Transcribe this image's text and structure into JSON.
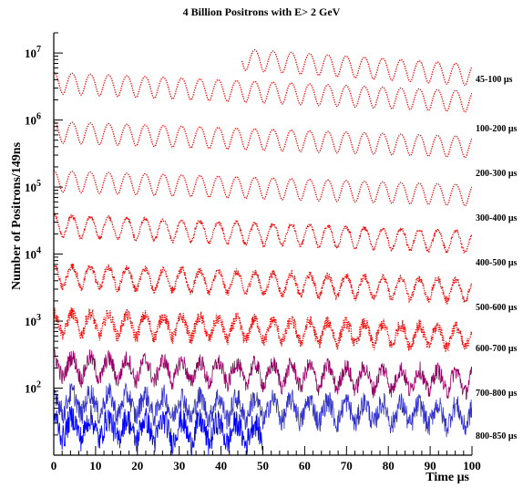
{
  "chart_data": {
    "type": "line",
    "title": "4 Billion Positrons with E> 2  GeV",
    "ylabel": "Number of Positrons/149ns",
    "xlabel": "Time μs",
    "x_scale": "linear",
    "y_scale": "log",
    "xlim": [
      0,
      100
    ],
    "ylim": [
      10,
      20000000
    ],
    "x_ticks": [
      "0",
      "10",
      "20",
      "30",
      "40",
      "50",
      "60",
      "70",
      "80",
      "90",
      "100"
    ],
    "y_ticks": [
      {
        "value": 100,
        "base": "10",
        "exp": "2"
      },
      {
        "value": 1000,
        "base": "10",
        "exp": "3"
      },
      {
        "value": 10000,
        "base": "10",
        "exp": "4"
      },
      {
        "value": 100000,
        "base": "10",
        "exp": "5"
      },
      {
        "value": 1000000,
        "base": "10",
        "exp": "6"
      },
      {
        "value": 10000000,
        "base": "10",
        "exp": "7"
      }
    ],
    "oscillation_period_us": 4.37,
    "series": [
      {
        "name": "45-100 μs",
        "color": "#ff0000",
        "style": "dotted",
        "x_start": 45,
        "x_end": 100,
        "y_start": 8500000,
        "y_end": 5000000,
        "amplitude": 0.35,
        "noise": 0.0
      },
      {
        "name": "",
        "color": "#ff0000",
        "style": "dotted",
        "x_start": 0,
        "x_end": 100,
        "y_start": 3800000,
        "y_end": 2000000,
        "amplitude": 0.35,
        "noise": 0.0
      },
      {
        "name": "100-200 μs",
        "color": "#ff0000",
        "style": "dotted",
        "x_start": 0,
        "x_end": 100,
        "y_start": 700000,
        "y_end": 420000,
        "amplitude": 0.35,
        "noise": 0.0
      },
      {
        "name": "200-300 μs",
        "color": "#ff0000",
        "style": "dotted",
        "x_start": 0,
        "x_end": 100,
        "y_start": 130000,
        "y_end": 80000,
        "amplitude": 0.35,
        "noise": 0.0
      },
      {
        "name": "300-400 μs",
        "color": "#ff0000",
        "style": "dotted",
        "x_start": 0,
        "x_end": 100,
        "y_start": 28000,
        "y_end": 16000,
        "amplitude": 0.35,
        "noise": 0.02
      },
      {
        "name": "400-500 μs",
        "color": "#ff0000",
        "style": "dotted",
        "x_start": 0,
        "x_end": 100,
        "y_start": 5000,
        "y_end": 3000,
        "amplitude": 0.35,
        "noise": 0.04
      },
      {
        "name": "500-600 μs",
        "color": "#ff0000",
        "style": "dotted",
        "x_start": 0,
        "x_end": 100,
        "y_start": 1000,
        "y_end": 600,
        "amplitude": 0.35,
        "noise": 0.07
      },
      {
        "name": "600-700 μs",
        "color": "#990066",
        "style": "solid",
        "x_start": 0,
        "x_end": 100,
        "y_start": 220,
        "y_end": 130,
        "amplitude": 0.35,
        "noise": 0.1
      },
      {
        "name": "700-800 μs",
        "color": "#3333cc",
        "style": "solid",
        "x_start": 0,
        "x_end": 100,
        "y_start": 65,
        "y_end": 40,
        "amplitude": 0.35,
        "noise": 0.13
      },
      {
        "name": "800-850 μs",
        "color": "#0000ff",
        "style": "solid",
        "x_start": 0,
        "x_end": 50,
        "y_start": 28,
        "y_end": 22,
        "amplitude": 0.35,
        "noise": 0.15
      }
    ]
  }
}
